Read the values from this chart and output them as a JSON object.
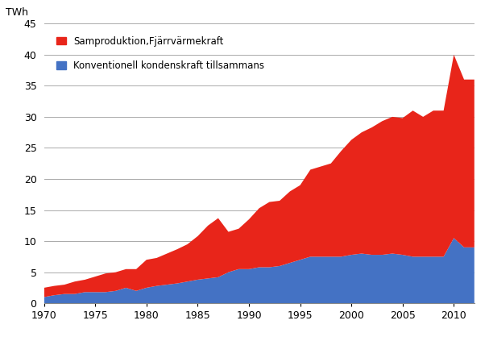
{
  "years": [
    1970,
    1971,
    1972,
    1973,
    1974,
    1975,
    1976,
    1977,
    1978,
    1979,
    1980,
    1981,
    1982,
    1983,
    1984,
    1985,
    1986,
    1987,
    1988,
    1989,
    1990,
    1991,
    1992,
    1993,
    1994,
    1995,
    1996,
    1997,
    1998,
    1999,
    2000,
    2001,
    2002,
    2003,
    2004,
    2005,
    2006,
    2007,
    2008,
    2009,
    2010,
    2011,
    2012
  ],
  "blue": [
    1.0,
    1.3,
    1.5,
    1.5,
    1.8,
    1.8,
    1.8,
    2.0,
    2.5,
    2.0,
    2.5,
    2.8,
    3.0,
    3.2,
    3.5,
    3.8,
    4.0,
    4.2,
    5.0,
    5.5,
    5.5,
    5.8,
    5.8,
    6.0,
    6.5,
    7.0,
    7.5,
    7.5,
    7.5,
    7.5,
    7.8,
    8.0,
    7.8,
    7.8,
    8.0,
    7.8,
    7.5,
    7.5,
    7.5,
    7.5,
    10.5,
    9.0,
    9.0
  ],
  "red_above_blue": [
    1.5,
    1.5,
    1.5,
    2.0,
    2.0,
    2.5,
    3.0,
    3.0,
    3.0,
    3.5,
    4.5,
    4.5,
    5.0,
    5.5,
    6.0,
    7.0,
    8.5,
    9.5,
    6.5,
    6.5,
    8.0,
    9.5,
    10.5,
    10.5,
    11.5,
    12.0,
    14.0,
    14.5,
    15.0,
    17.0,
    18.5,
    19.5,
    20.5,
    21.5,
    22.0,
    22.0,
    23.5,
    22.5,
    23.5,
    23.5,
    29.5,
    27.0,
    27.0
  ],
  "blue_color": "#4472C4",
  "red_color": "#E8251A",
  "legend_red": "Samproduktion,Fjärrvärmekraft",
  "legend_blue": "Konventionell kondenskraft tillsammans",
  "ylabel": "TWh",
  "ylim": [
    0,
    45
  ],
  "yticks": [
    0,
    5,
    10,
    15,
    20,
    25,
    30,
    35,
    40,
    45
  ],
  "xlim": [
    1970,
    2012
  ],
  "xticks": [
    1970,
    1975,
    1980,
    1985,
    1990,
    1995,
    2000,
    2005,
    2010
  ],
  "background_color": "#ffffff",
  "grid_color": "#aaaaaa"
}
